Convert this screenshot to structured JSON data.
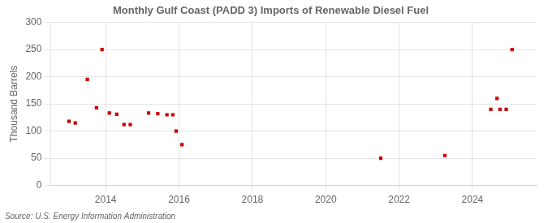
{
  "chart_data": {
    "type": "scatter",
    "title": "Monthly Gulf Coast (PADD 3) Imports of Renewable Diesel Fuel",
    "ylabel": "Thousand Barrels",
    "annotation": "Source: U.S. Energy Information Administration",
    "x": [
      2013.0,
      2013.17,
      2013.5,
      2013.75,
      2013.9,
      2014.1,
      2014.3,
      2014.5,
      2014.67,
      2015.17,
      2015.42,
      2015.67,
      2015.83,
      2015.92,
      2016.08,
      2021.5,
      2023.25,
      2024.5,
      2024.67,
      2024.75,
      2024.92,
      2025.08
    ],
    "values": [
      118,
      115,
      195,
      143,
      250,
      133,
      131,
      112,
      112,
      133,
      132,
      130,
      130,
      100,
      75,
      50,
      55,
      140,
      160,
      140,
      140,
      250
    ],
    "color": "#cc0000",
    "marker": "square",
    "xlim": [
      2012.5,
      2025.75
    ],
    "xticks": [
      2014,
      2016,
      2018,
      2020,
      2022,
      2024
    ],
    "ylim": [
      0,
      300
    ],
    "yticks": [
      0,
      50,
      100,
      150,
      200,
      250,
      300
    ],
    "grid": true
  }
}
